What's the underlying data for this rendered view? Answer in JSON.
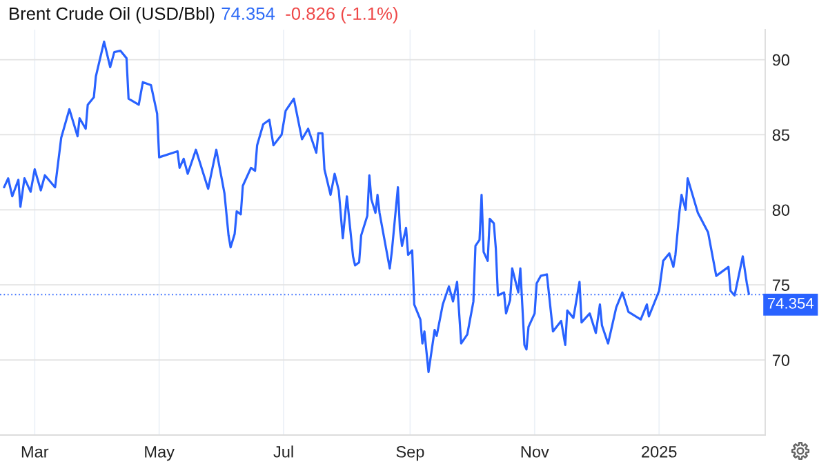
{
  "chart_data": {
    "type": "line",
    "title": "Brent Crude Oil (USD/Bbl)",
    "annotations": [
      "74.354",
      "-0.826 (-1.1%)"
    ],
    "x": [
      "2024-02-15",
      "2024-02-17",
      "2024-02-19",
      "2024-02-22",
      "2024-02-23",
      "2024-02-25",
      "2024-02-28",
      "2024-03-01",
      "2024-03-04",
      "2024-03-06",
      "2024-03-11",
      "2024-03-14",
      "2024-03-18",
      "2024-03-22",
      "2024-03-23",
      "2024-03-26",
      "2024-03-27",
      "2024-03-30",
      "2024-03-31",
      "2024-04-04",
      "2024-04-07",
      "2024-04-09",
      "2024-04-12",
      "2024-04-15",
      "2024-04-16",
      "2024-04-21",
      "2024-04-23",
      "2024-04-27",
      "2024-04-30",
      "2024-05-01",
      "2024-05-10",
      "2024-05-11",
      "2024-05-13",
      "2024-05-15",
      "2024-05-19",
      "2024-05-25",
      "2024-05-29",
      "2024-06-02",
      "2024-06-04",
      "2024-06-05",
      "2024-06-07",
      "2024-06-08",
      "2024-06-10",
      "2024-06-11",
      "2024-06-15",
      "2024-06-17",
      "2024-06-18",
      "2024-06-21",
      "2024-06-24",
      "2024-06-26",
      "2024-06-30",
      "2024-07-02",
      "2024-07-06",
      "2024-07-10",
      "2024-07-13",
      "2024-07-17",
      "2024-07-18",
      "2024-07-20",
      "2024-07-21",
      "2024-07-24",
      "2024-07-26",
      "2024-07-28",
      "2024-07-30",
      "2024-08-01",
      "2024-08-04",
      "2024-08-05",
      "2024-08-07",
      "2024-08-08",
      "2024-08-11",
      "2024-08-12",
      "2024-08-13",
      "2024-08-15",
      "2024-08-16",
      "2024-08-17",
      "2024-08-22",
      "2024-08-23",
      "2024-08-26",
      "2024-08-27",
      "2024-08-28",
      "2024-08-30",
      "2024-08-31",
      "2024-09-02",
      "2024-09-03",
      "2024-09-06",
      "2024-09-07",
      "2024-09-08",
      "2024-09-10",
      "2024-09-13",
      "2024-09-14",
      "2024-09-17",
      "2024-09-20",
      "2024-09-22",
      "2024-09-24",
      "2024-09-26",
      "2024-09-29",
      "2024-10-02",
      "2024-10-03",
      "2024-10-05",
      "2024-10-06",
      "2024-10-07",
      "2024-10-09",
      "2024-10-10",
      "2024-10-12",
      "2024-10-13",
      "2024-10-14",
      "2024-10-17",
      "2024-10-18",
      "2024-10-20",
      "2024-10-21",
      "2024-10-24",
      "2024-10-25",
      "2024-10-27",
      "2024-10-28",
      "2024-10-29",
      "2024-11-01",
      "2024-11-02",
      "2024-11-04",
      "2024-11-07",
      "2024-11-10",
      "2024-11-14",
      "2024-11-16",
      "2024-11-17",
      "2024-11-20",
      "2024-11-23",
      "2024-11-24",
      "2024-11-28",
      "2024-12-01",
      "2024-12-03",
      "2024-12-04",
      "2024-12-07",
      "2024-12-11",
      "2024-12-14",
      "2024-12-17",
      "2024-12-23",
      "2024-12-26",
      "2024-12-27",
      "2025-01-01",
      "2025-01-03",
      "2025-01-06",
      "2025-01-08",
      "2025-01-09",
      "2025-01-11",
      "2025-01-12",
      "2025-01-14",
      "2025-01-15",
      "2025-01-20",
      "2025-01-25",
      "2025-01-29",
      "2025-02-04",
      "2025-02-05",
      "2025-02-07",
      "2025-02-11",
      "2025-02-13",
      "2025-02-14"
    ],
    "series": [
      {
        "color": "#2962ff",
        "values": [
          81.5,
          82.1,
          80.9,
          82.0,
          80.2,
          82.1,
          81.2,
          82.7,
          81.3,
          82.3,
          81.5,
          84.8,
          86.7,
          84.9,
          86.1,
          85.4,
          87.0,
          87.5,
          88.9,
          91.2,
          89.5,
          90.5,
          90.6,
          90.1,
          87.4,
          87.0,
          88.5,
          88.3,
          86.4,
          83.5,
          83.9,
          82.8,
          83.4,
          82.4,
          84.0,
          81.4,
          84.0,
          81.1,
          78.3,
          77.5,
          78.4,
          79.9,
          79.7,
          81.6,
          82.8,
          82.6,
          84.3,
          85.7,
          86.0,
          84.3,
          85.0,
          86.6,
          87.4,
          84.7,
          85.4,
          83.8,
          85.1,
          85.1,
          82.7,
          81.0,
          82.4,
          81.3,
          78.1,
          80.9,
          76.9,
          76.3,
          76.5,
          78.3,
          79.6,
          82.3,
          80.7,
          79.8,
          81.0,
          79.8,
          76.1,
          77.2,
          81.5,
          78.7,
          77.6,
          78.8,
          77.0,
          77.3,
          73.7,
          72.7,
          71.1,
          71.9,
          69.2,
          72.0,
          71.6,
          73.7,
          74.9,
          73.9,
          75.2,
          71.1,
          71.7,
          73.9,
          77.6,
          78.0,
          81.0,
          77.2,
          76.6,
          79.4,
          79.1,
          77.4,
          74.3,
          74.5,
          73.1,
          74.0,
          76.1,
          74.5,
          76.1,
          71.0,
          70.7,
          72.2,
          73.1,
          75.1,
          75.6,
          75.7,
          71.9,
          72.6,
          71.0,
          73.3,
          72.8,
          75.2,
          72.5,
          73.1,
          71.8,
          73.7,
          72.3,
          71.1,
          73.5,
          74.5,
          73.2,
          72.7,
          73.7,
          72.9,
          74.6,
          76.6,
          77.1,
          76.2,
          77.0,
          79.9,
          81.0,
          80.0,
          82.1,
          79.8,
          78.5,
          75.6,
          76.2,
          74.6,
          74.3,
          76.9,
          75.1,
          74.4
        ]
      }
    ],
    "xlim": [
      "2024-02-13",
      "2025-02-22"
    ],
    "xticks": [
      {
        "value": "2024-03-01",
        "label": "Mar"
      },
      {
        "value": "2024-05-01",
        "label": "May"
      },
      {
        "value": "2024-07-01",
        "label": "Jul"
      },
      {
        "value": "2024-09-01",
        "label": "Sep"
      },
      {
        "value": "2024-11-01",
        "label": "Nov"
      },
      {
        "value": "2025-01-01",
        "label": "2025"
      }
    ],
    "ylim": [
      65,
      92
    ],
    "yticks": [
      70,
      75,
      80,
      85,
      90
    ],
    "grid": true,
    "ref_lines": [
      {
        "axis": "y",
        "value": 74.354,
        "label": "74.354",
        "color": "#2962ff",
        "line_style": "dotted"
      }
    ]
  }
}
